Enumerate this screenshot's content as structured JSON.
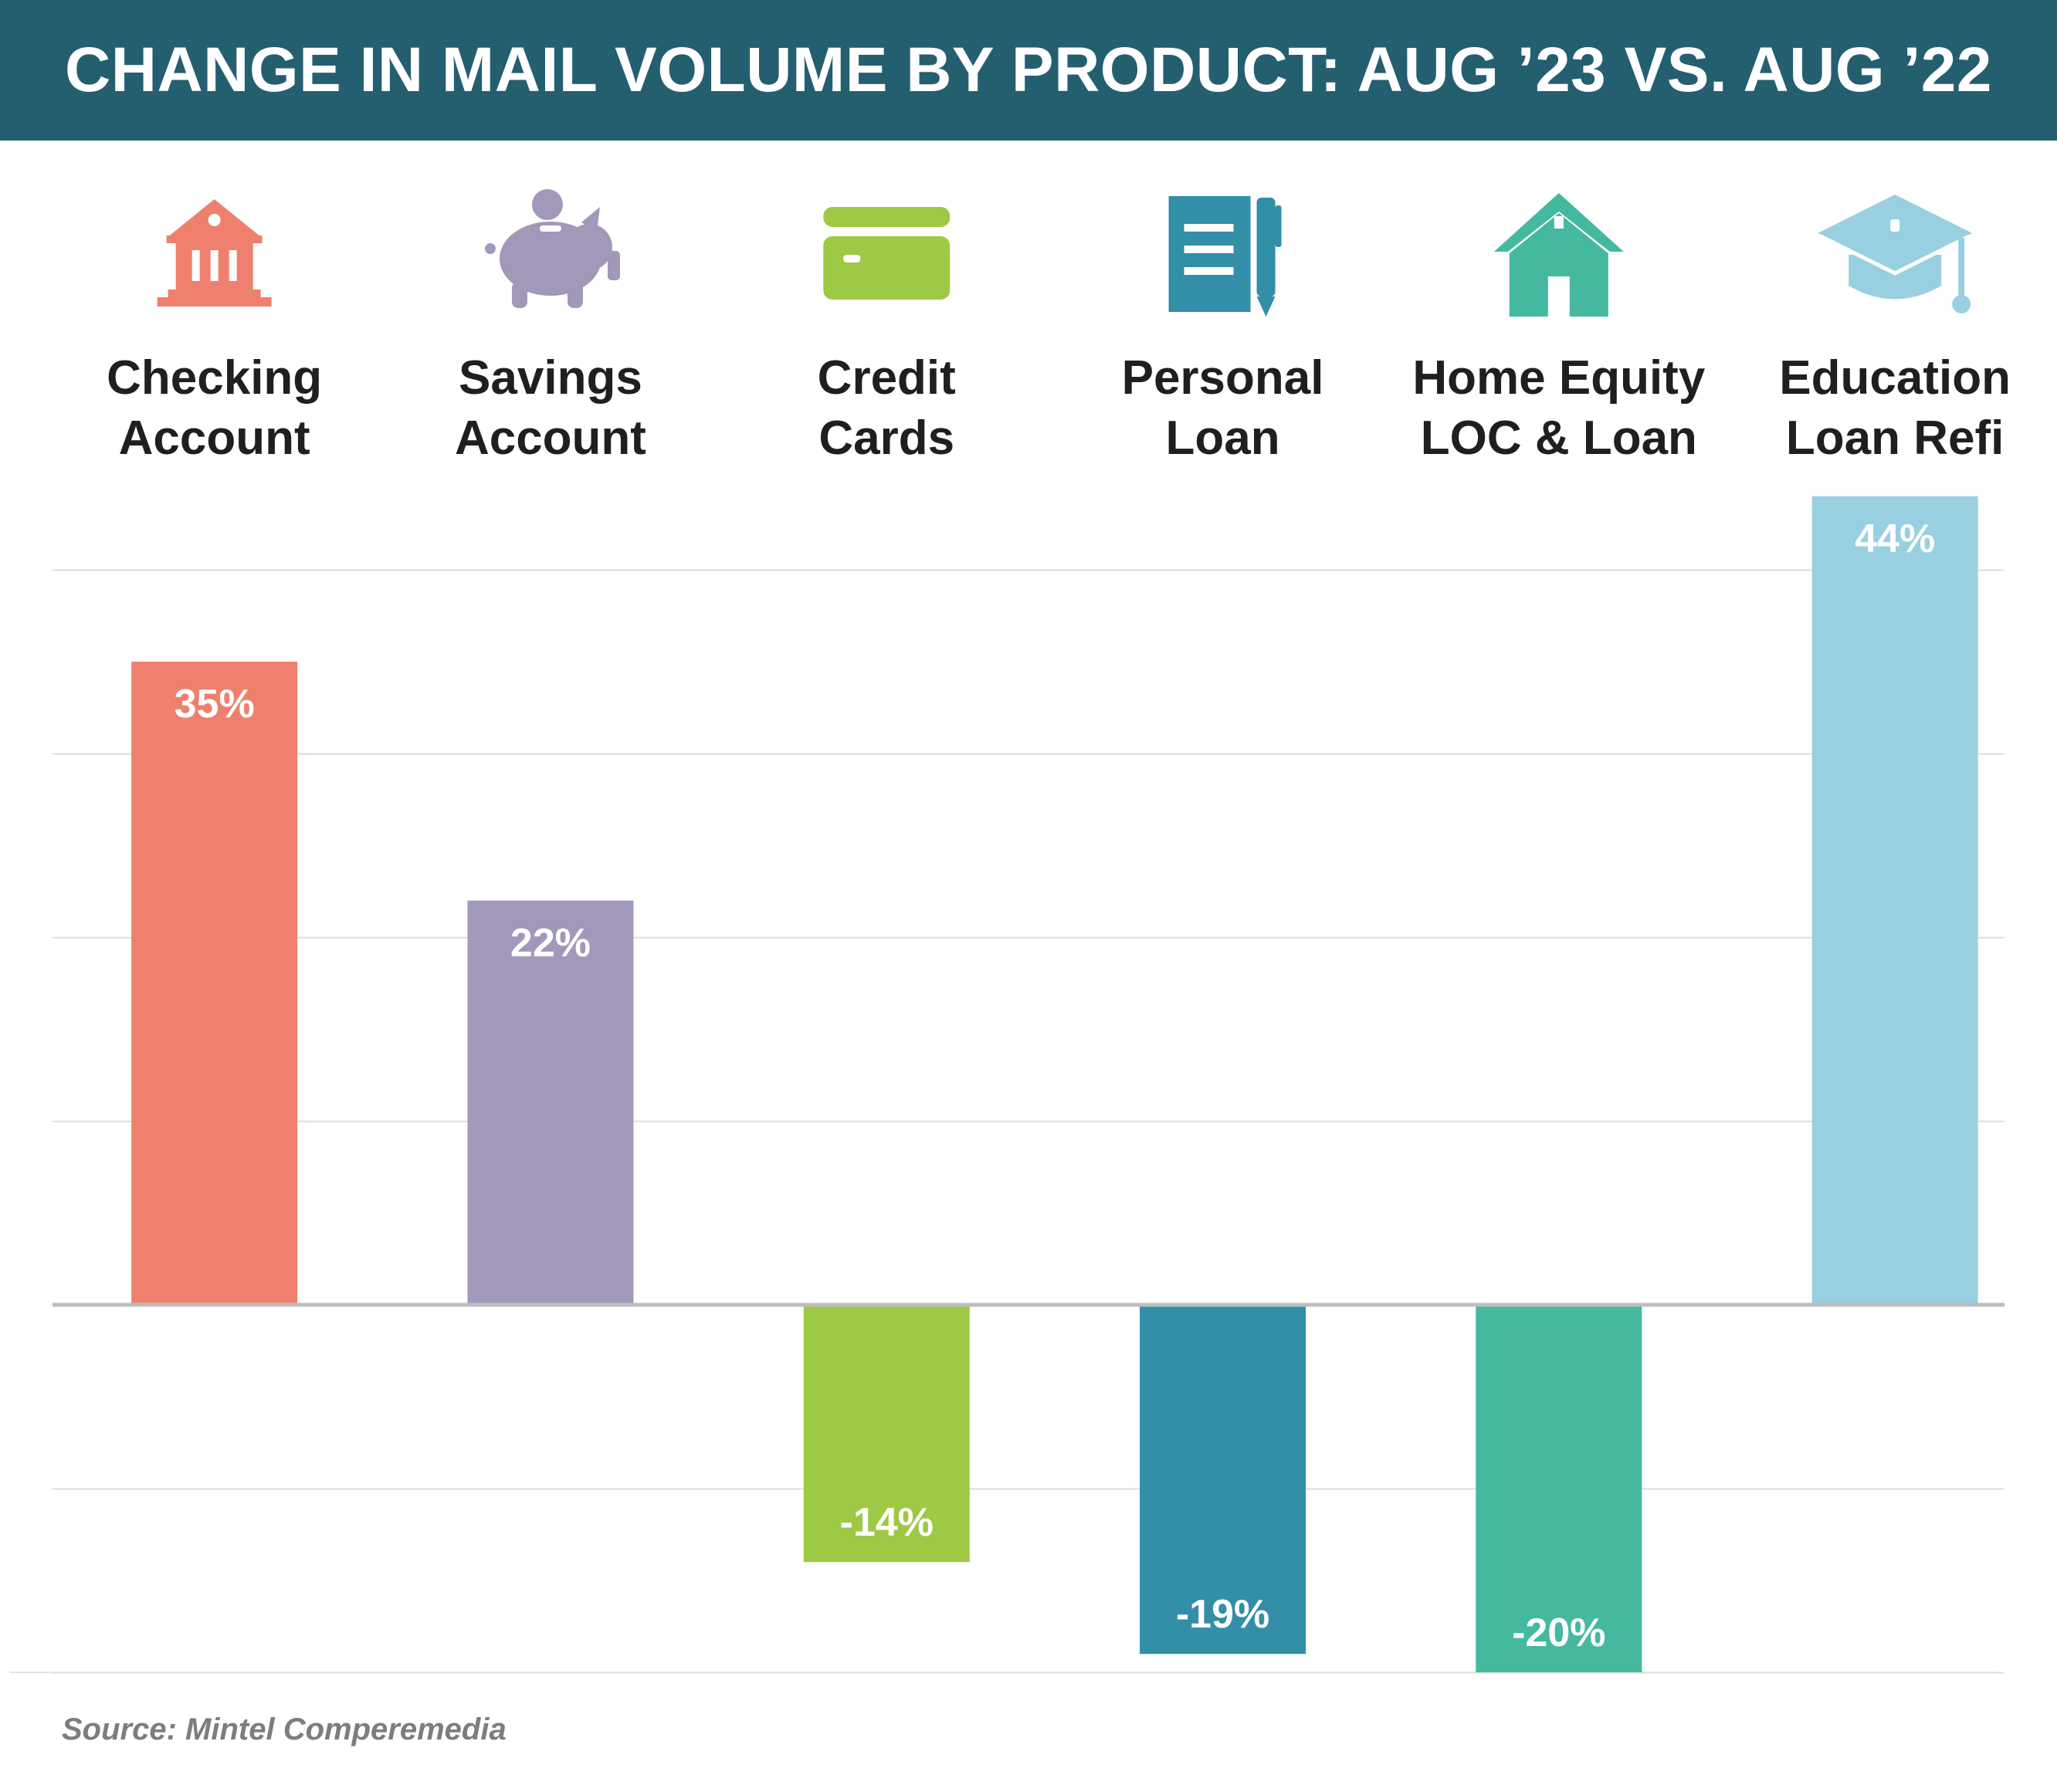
{
  "header": {
    "title": "CHANGE IN MAIL VOLUME BY PRODUCT: AUG ’23 VS. AUG ’22"
  },
  "source": "Source: Mintel Comperemedia",
  "chart_data": {
    "type": "bar",
    "title": "CHANGE IN MAIL VOLUME BY PRODUCT: AUG ’23 VS. AUG ’22",
    "xlabel": "",
    "ylabel": "",
    "unit": "%",
    "categories": [
      [
        "Checking",
        "Account"
      ],
      [
        "Savings",
        "Account"
      ],
      [
        "Credit",
        "Cards"
      ],
      [
        "Personal",
        "Loan"
      ],
      [
        "Home Equity",
        "LOC & Loan"
      ],
      [
        "Education",
        "Loan Refi"
      ]
    ],
    "values": [
      35,
      22,
      -14,
      -19,
      -20,
      44
    ],
    "data_labels": [
      "35%",
      "22%",
      "-14%",
      "-19%",
      "-20%",
      "44%"
    ],
    "colors": [
      "#ef806e",
      "#a298ba",
      "#9dc944",
      "#338ea8",
      "#45b9a0",
      "#99d0e1"
    ],
    "icons": [
      "bank-icon",
      "piggy-bank-icon",
      "credit-card-icon",
      "notebook-pen-icon",
      "house-icon",
      "graduation-cap-icon"
    ],
    "ylim": [
      -20,
      40
    ],
    "grid": true,
    "legend": "none"
  }
}
